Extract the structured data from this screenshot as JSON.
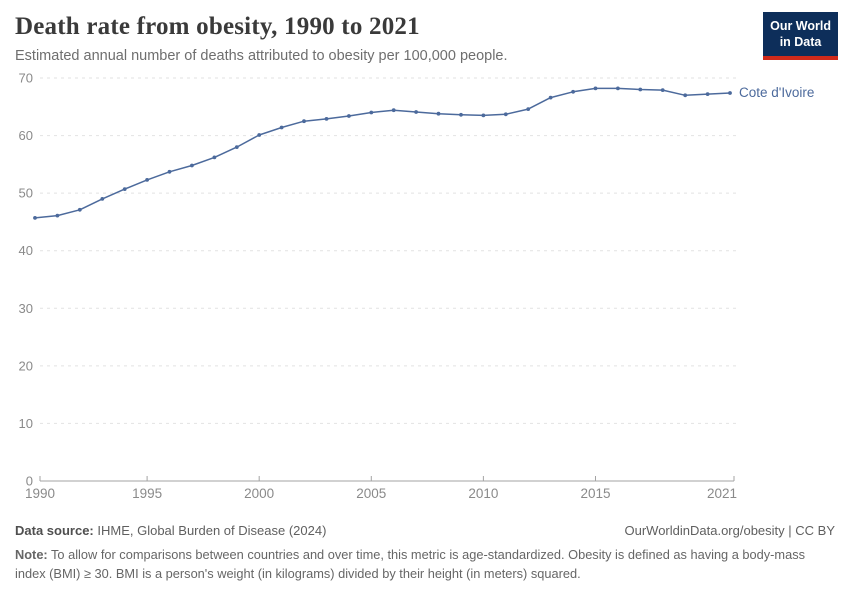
{
  "header": {
    "title": "Death rate from obesity, 1990 to 2021",
    "subtitle": "Estimated annual number of deaths attributed to obesity per 100,000 people.",
    "logo": {
      "line1": "Our World",
      "line2": "in Data"
    }
  },
  "chart_data": {
    "type": "line",
    "title": "Death rate from obesity, 1990 to 2021",
    "xlabel": "",
    "ylabel": "",
    "x": [
      1990,
      1991,
      1992,
      1993,
      1994,
      1995,
      1996,
      1997,
      1998,
      1999,
      2000,
      2001,
      2002,
      2003,
      2004,
      2005,
      2006,
      2007,
      2008,
      2009,
      2010,
      2011,
      2012,
      2013,
      2014,
      2015,
      2016,
      2017,
      2018,
      2019,
      2020,
      2021
    ],
    "series": [
      {
        "name": "Cote d'Ivoire",
        "color": "#4c6a9c",
        "values": [
          45.7,
          46.1,
          47.1,
          49.0,
          50.7,
          52.3,
          53.7,
          54.8,
          56.2,
          58.0,
          60.1,
          61.4,
          62.5,
          62.9,
          63.4,
          64.0,
          64.4,
          64.1,
          63.8,
          63.6,
          63.5,
          63.7,
          64.6,
          66.6,
          67.6,
          68.2,
          68.2,
          68.0,
          67.9,
          67.0,
          67.2,
          67.4
        ]
      }
    ],
    "ylim": [
      0,
      70
    ],
    "yticks": [
      0,
      10,
      20,
      30,
      40,
      50,
      60,
      70
    ],
    "xticks": [
      1990,
      1995,
      2000,
      2005,
      2010,
      2015,
      2021
    ],
    "grid": "horizontal-dashed",
    "legend_position": "end-of-line-label",
    "marker": "circle"
  },
  "footer": {
    "datasource_label": "Data source:",
    "datasource_value": " IHME, Global Burden of Disease (2024)",
    "attribution": "OurWorldinData.org/obesity | CC BY",
    "note_label": "Note:",
    "note_value": " To allow for comparisons between countries and over time, this metric is age-standardized. Obesity is defined as having a body-mass index (BMI) ≥ 30. BMI is a person's weight (in kilograms) divided by their height (in meters) squared."
  },
  "colors": {
    "line": "#4c6a9c",
    "grid": "#e2e2e2",
    "axis": "#a3a3a3",
    "tick_label": "#8a8a8a",
    "logo_bg": "#0d2e5a",
    "logo_accent": "#d02a1a"
  }
}
